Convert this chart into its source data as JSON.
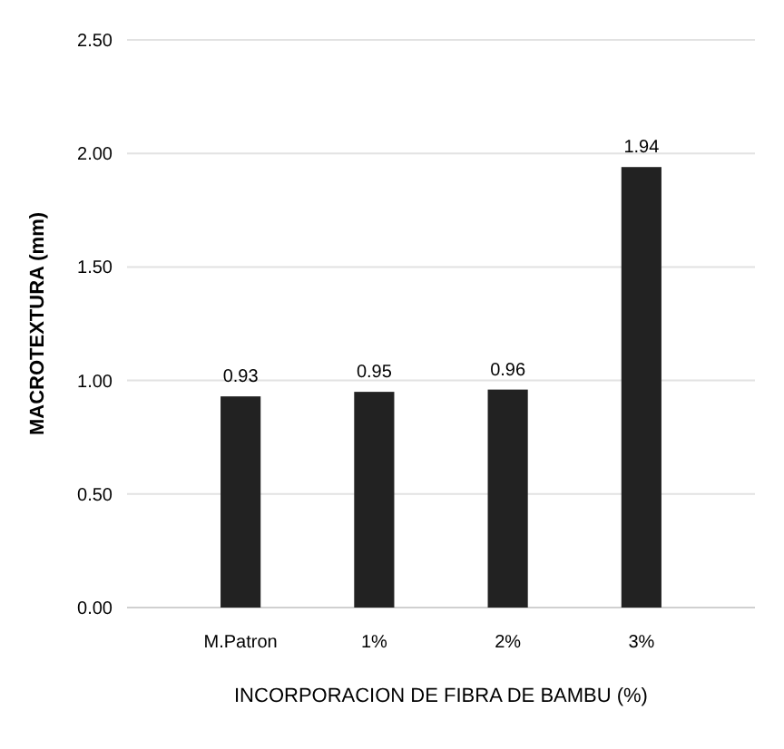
{
  "chart_data": {
    "type": "bar",
    "categories": [
      "M.Patron",
      "1%",
      "2%",
      "3%"
    ],
    "values": [
      0.93,
      0.95,
      0.96,
      1.94
    ],
    "color": "#222222",
    "ylabel": "MACROTEXTURA (mm)",
    "xlabel": "INCORPORACION DE FIBRA DE BAMBU (%)",
    "ylim": [
      0,
      2.5
    ],
    "yticks": [
      {
        "value": 0,
        "label": "0.00"
      },
      {
        "value": 0.5,
        "label": "0.50"
      },
      {
        "value": 1,
        "label": "1.00"
      },
      {
        "value": 1.5,
        "label": "1.50"
      },
      {
        "value": 2,
        "label": "2.00"
      },
      {
        "value": 2.5,
        "label": "2.50"
      }
    ],
    "grid": "y",
    "data_labels": true
  }
}
